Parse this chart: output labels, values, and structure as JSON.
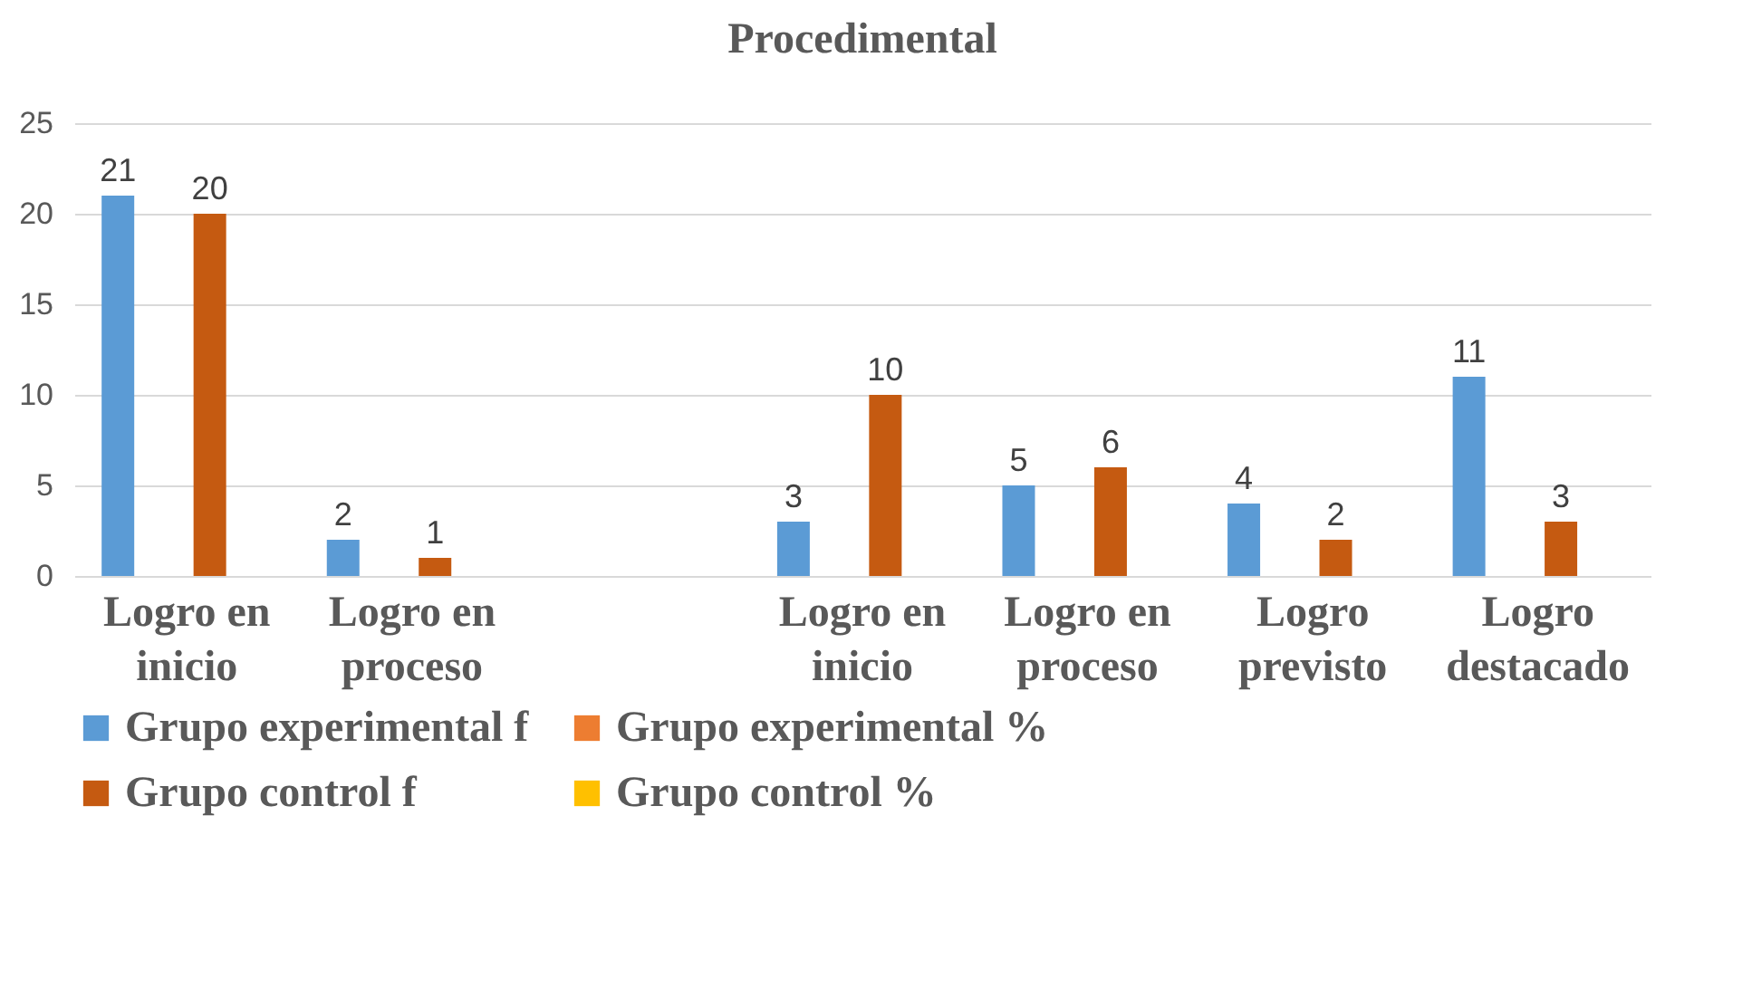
{
  "chart_data": {
    "type": "bar",
    "title": "Procedimental",
    "categories": [
      "Logro en inicio",
      "Logro en proceso",
      null,
      "Logro en inicio",
      "Logro en proceso",
      "Logro previsto",
      "Logro destacado"
    ],
    "series": [
      {
        "name": "Grupo experimental f",
        "color": "#5b9bd5",
        "values": [
          21,
          2,
          null,
          3,
          5,
          4,
          11
        ]
      },
      {
        "name": "Grupo experimental %",
        "color": "#ed7d31",
        "values": [
          null,
          null,
          null,
          null,
          null,
          null,
          null
        ]
      },
      {
        "name": "Grupo control f",
        "color": "#c55a11",
        "values": [
          20,
          1,
          null,
          10,
          6,
          2,
          3
        ]
      },
      {
        "name": "Grupo control %",
        "color": "#ffc000",
        "values": [
          null,
          null,
          null,
          null,
          null,
          null,
          null
        ]
      }
    ],
    "ylim": [
      0,
      25
    ],
    "yticks": [
      0,
      5,
      10,
      15,
      20,
      25
    ],
    "grid": "y",
    "legend": "bottom",
    "data_labels": true
  }
}
